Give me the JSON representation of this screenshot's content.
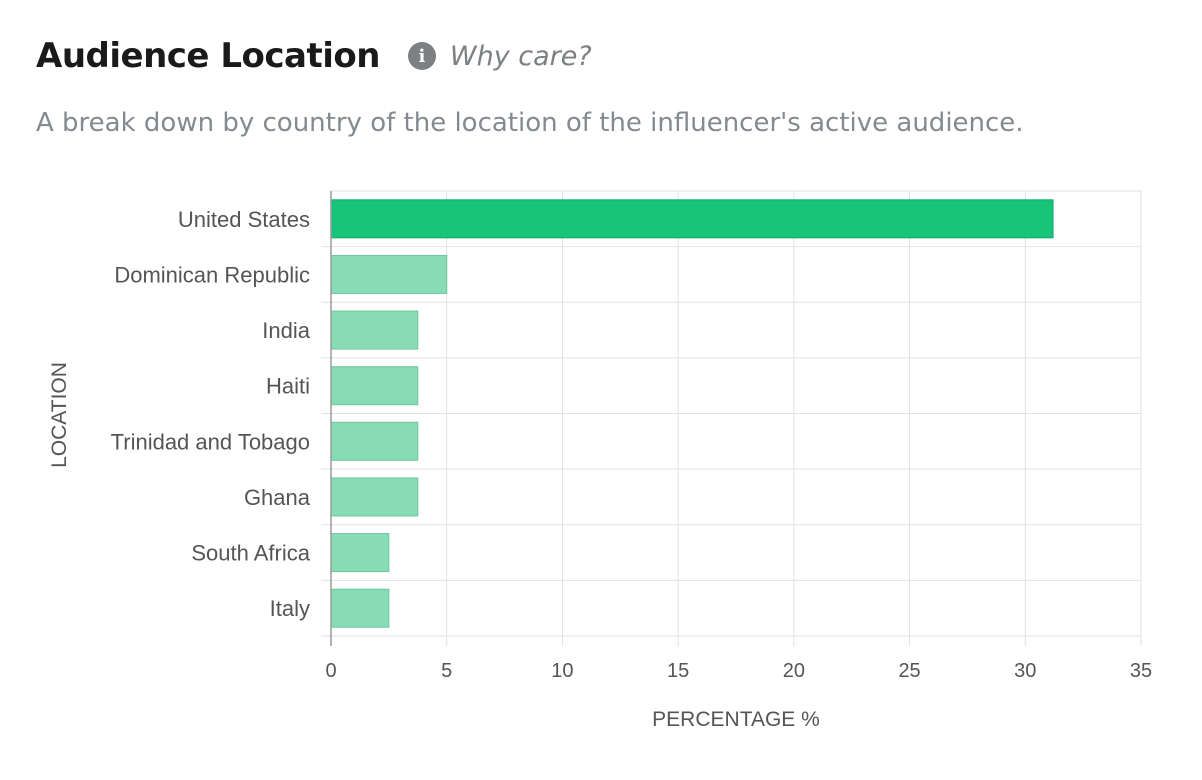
{
  "header": {
    "title": "Audience Location",
    "info_icon": "info-icon",
    "why_care_label": "Why care?",
    "subtitle": "A break down by country of the location of the influencer's active audience."
  },
  "colors": {
    "top_bar": "#16c47a",
    "top_bar_stroke": "#10a866",
    "bar": "#87dbb5",
    "bar_stroke": "#6cc79d",
    "grid": "#e2e2e2",
    "axis": "#999999"
  },
  "chart_data": {
    "type": "bar",
    "orientation": "horizontal",
    "categories": [
      "United States",
      "Dominican Republic",
      "India",
      "Haiti",
      "Trinidad and Tobago",
      "Ghana",
      "South Africa",
      "Italy"
    ],
    "values": [
      31.2,
      5.0,
      3.75,
      3.75,
      3.75,
      3.75,
      2.5,
      2.5
    ],
    "xlabel": "PERCENTAGE %",
    "ylabel": "LOCATION",
    "xlim": [
      0,
      35
    ],
    "xticks": [
      0,
      5,
      10,
      15,
      20,
      25,
      30,
      35
    ],
    "grid": true,
    "legend": "none"
  }
}
